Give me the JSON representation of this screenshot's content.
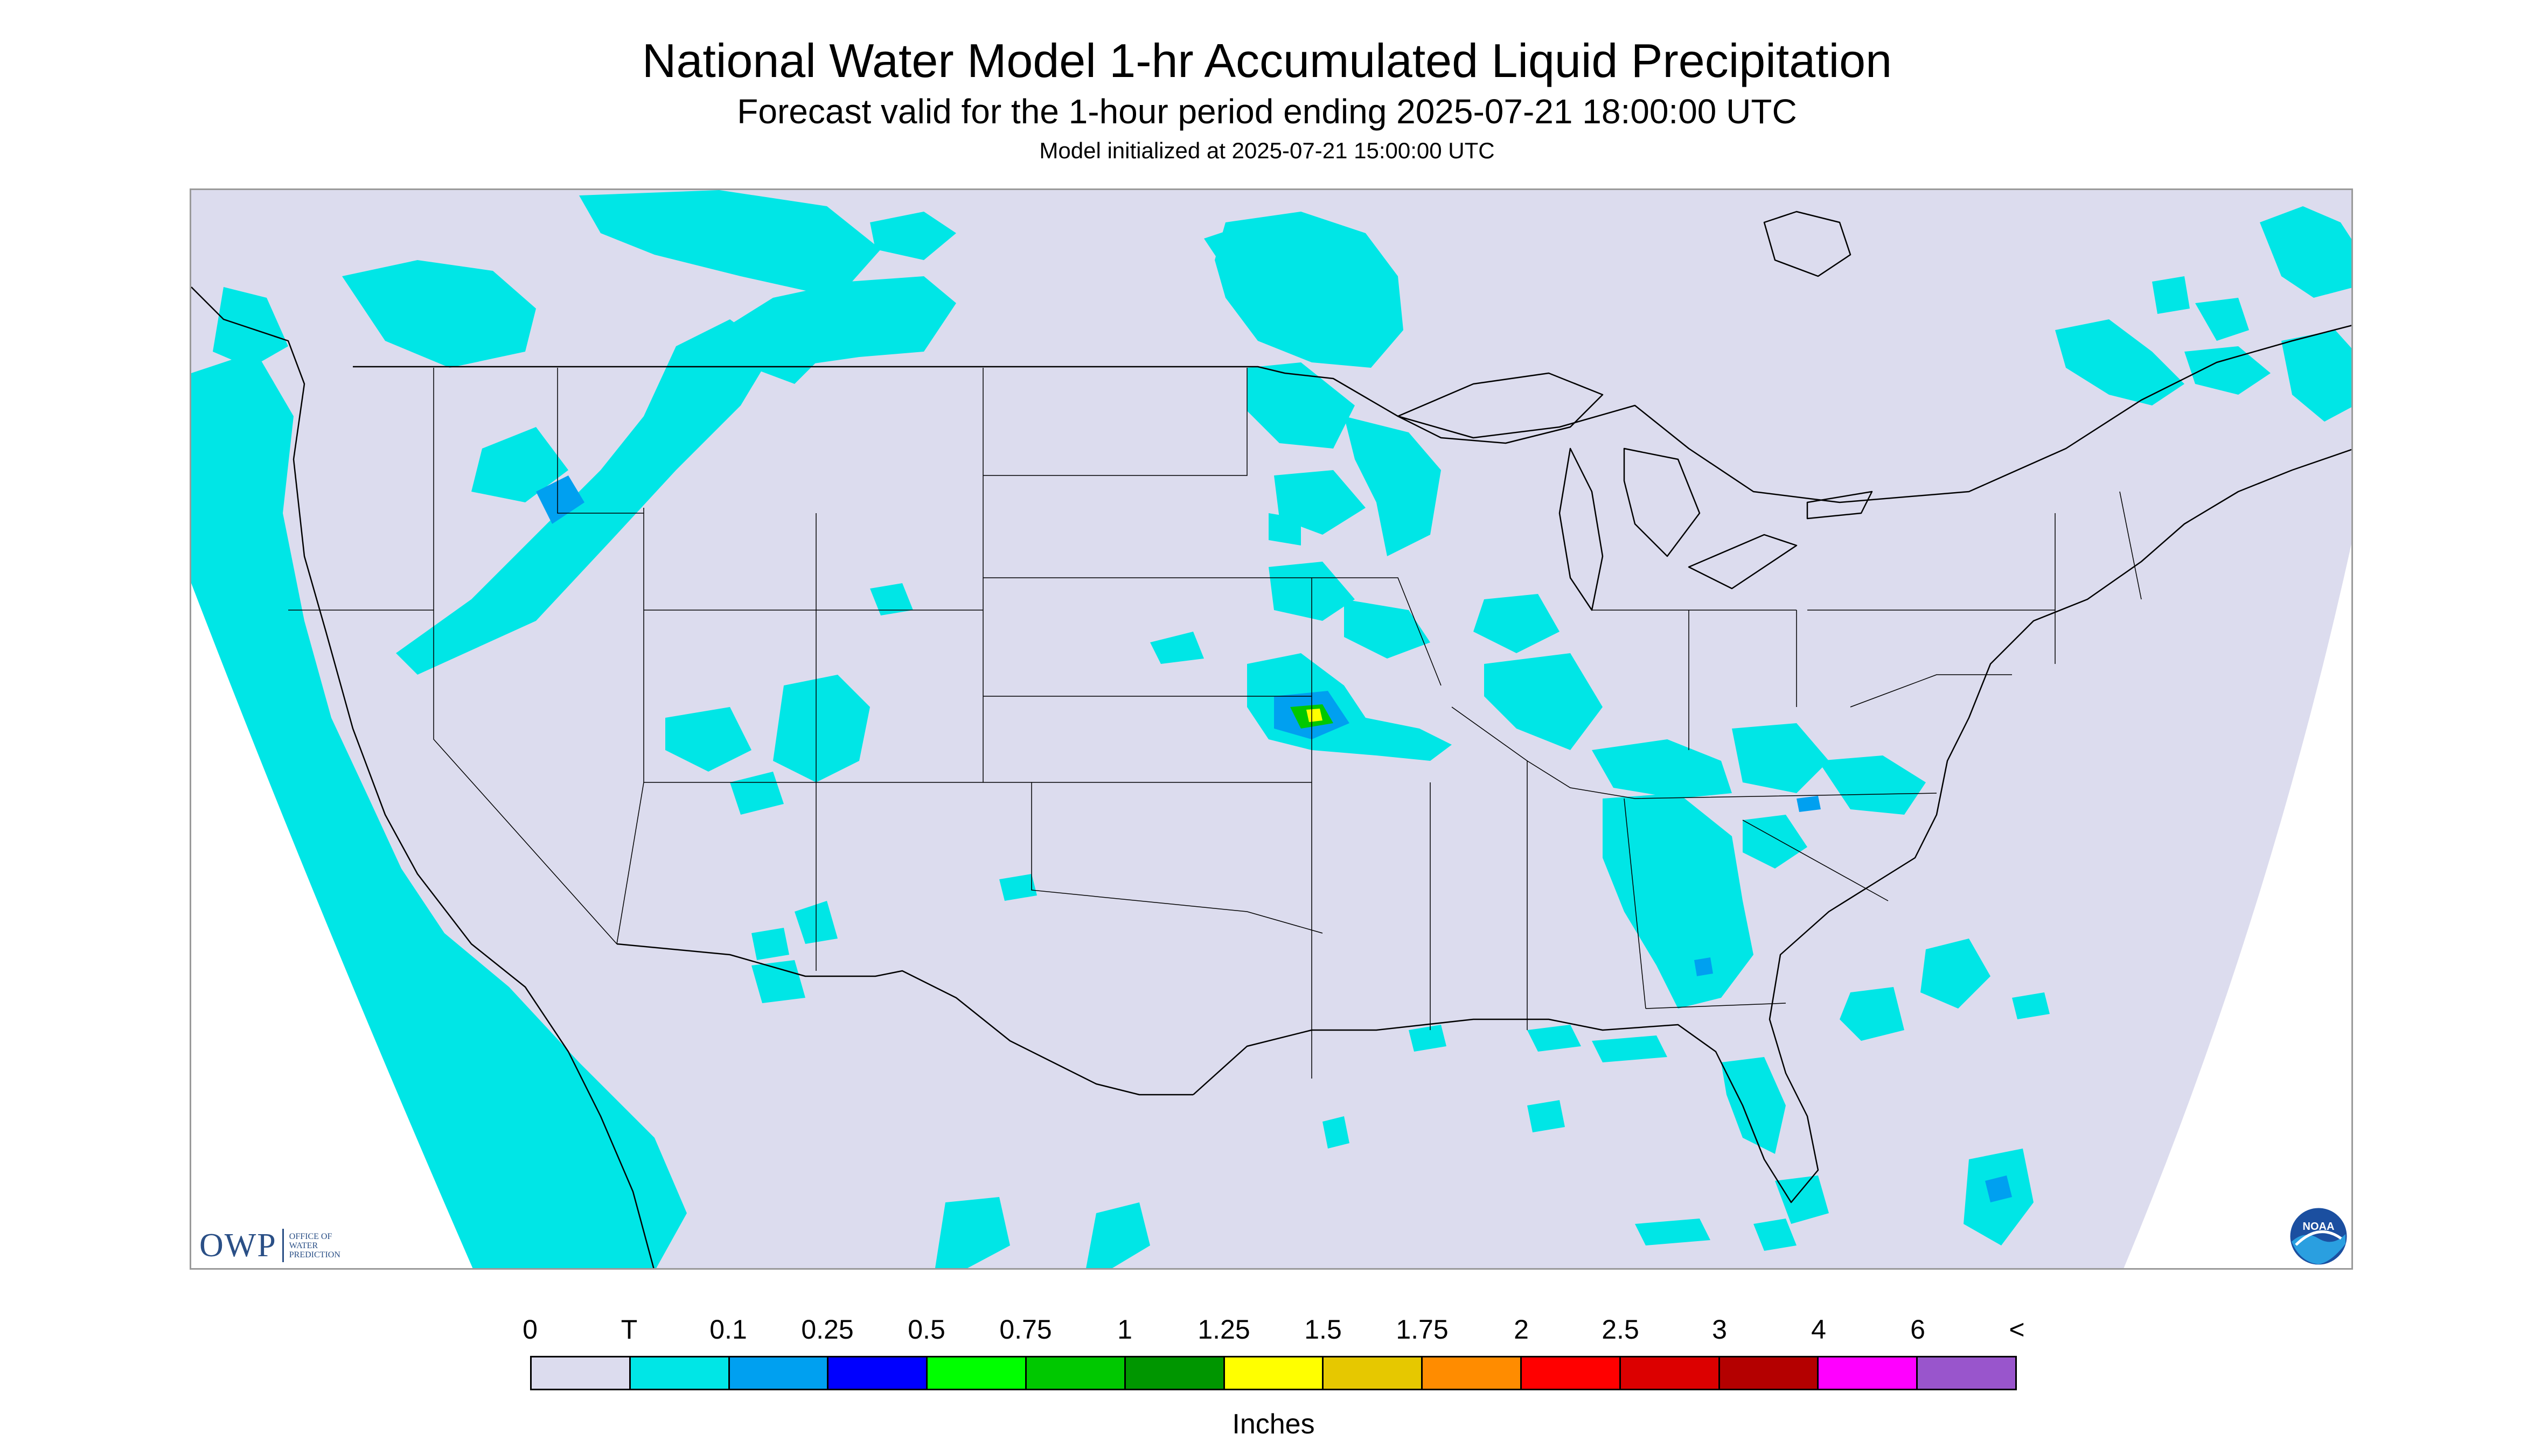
{
  "header": {
    "title": "National Water Model 1-hr Accumulated Liquid Precipitation",
    "subtitle": "Forecast valid for the 1-hour period ending 2025-07-21 18:00:00 UTC",
    "init": "Model initialized at 2025-07-21 15:00:00 UTC"
  },
  "logos": {
    "owp_mark": "OWP",
    "owp_text": [
      "OFFICE OF",
      "WATER",
      "PREDICTION"
    ],
    "noaa_text": "NOAA"
  },
  "map": {
    "domain_fill": "#dcdcee",
    "outside_fill": "#ffffff",
    "boundary_color": "#000000"
  },
  "legend": {
    "tick_labels": [
      "0",
      "T",
      "0.1",
      "0.25",
      "0.5",
      "0.75",
      "1",
      "1.25",
      "1.5",
      "1.75",
      "2",
      "2.5",
      "3",
      "4",
      "6",
      "<"
    ],
    "colors": [
      "#dcdcee",
      "#00e6e6",
      "#00a0f0",
      "#0000ff",
      "#00ff00",
      "#00c800",
      "#009600",
      "#ffff00",
      "#e6c800",
      "#ff8c00",
      "#ff0000",
      "#dc0000",
      "#b40000",
      "#ff00ff",
      "#9955cc"
    ],
    "units": "Inches"
  }
}
